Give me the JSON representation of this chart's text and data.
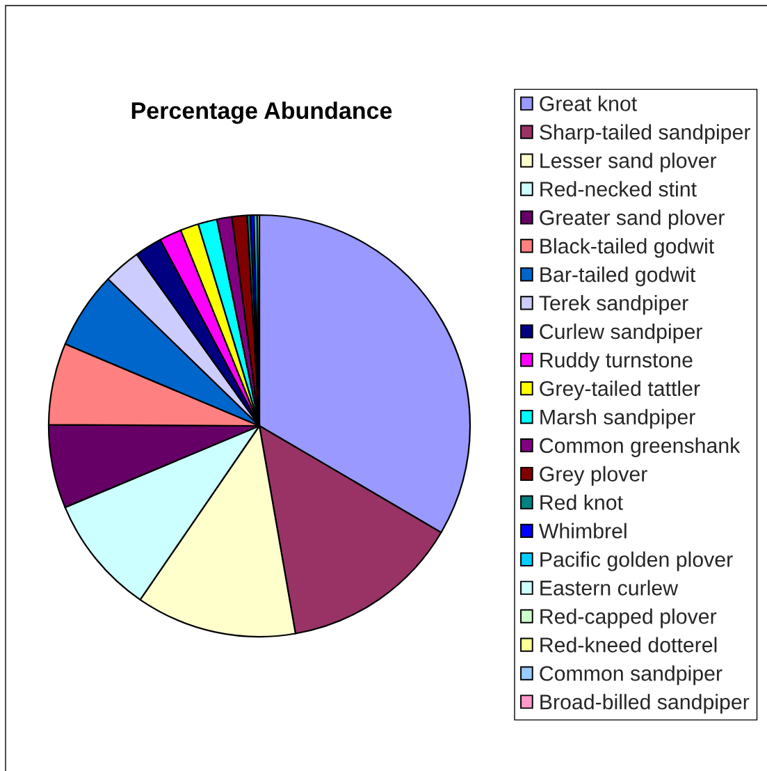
{
  "chart_data": {
    "type": "pie",
    "title": "Percentage Abundance",
    "categories": [
      "Great knot",
      "Sharp-tailed sandpiper",
      "Lesser sand plover",
      "Red-necked stint",
      "Greater sand plover",
      "Black-tailed godwit",
      "Bar-tailed godwit",
      "Terek sandpiper",
      "Curlew sandpiper",
      "Ruddy turnstone",
      "Grey-tailed tattler",
      "Marsh sandpiper",
      "Common greenshank",
      "Grey plover",
      "Red knot",
      "Whimbrel",
      "Pacific golden plover",
      "Eastern curlew",
      "Red-capped plover",
      "Red-kneed dotterel",
      "Common sandpiper",
      "Broad-billed sandpiper"
    ],
    "values": [
      33.4,
      13.8,
      12.3,
      9.1,
      6.4,
      6.25,
      5.9,
      2.85,
      2.1,
      1.7,
      1.4,
      1.45,
      1.15,
      1.15,
      0.25,
      0.26,
      0.26,
      null,
      null,
      0.16,
      null,
      null
    ],
    "colors": [
      "#9999ff",
      "#993366",
      "#ffffcc",
      "#ccffff",
      "#660066",
      "#ff8080",
      "#0066cc",
      "#ccccff",
      "#000080",
      "#ff00ff",
      "#ffff00",
      "#00ffff",
      "#800080",
      "#800000",
      "#008080",
      "#0000ff",
      "#00ccff",
      "#ccffff",
      "#ccffcc",
      "#ffff99",
      "#99ccff",
      "#ff99cc"
    ],
    "legend": "right"
  }
}
